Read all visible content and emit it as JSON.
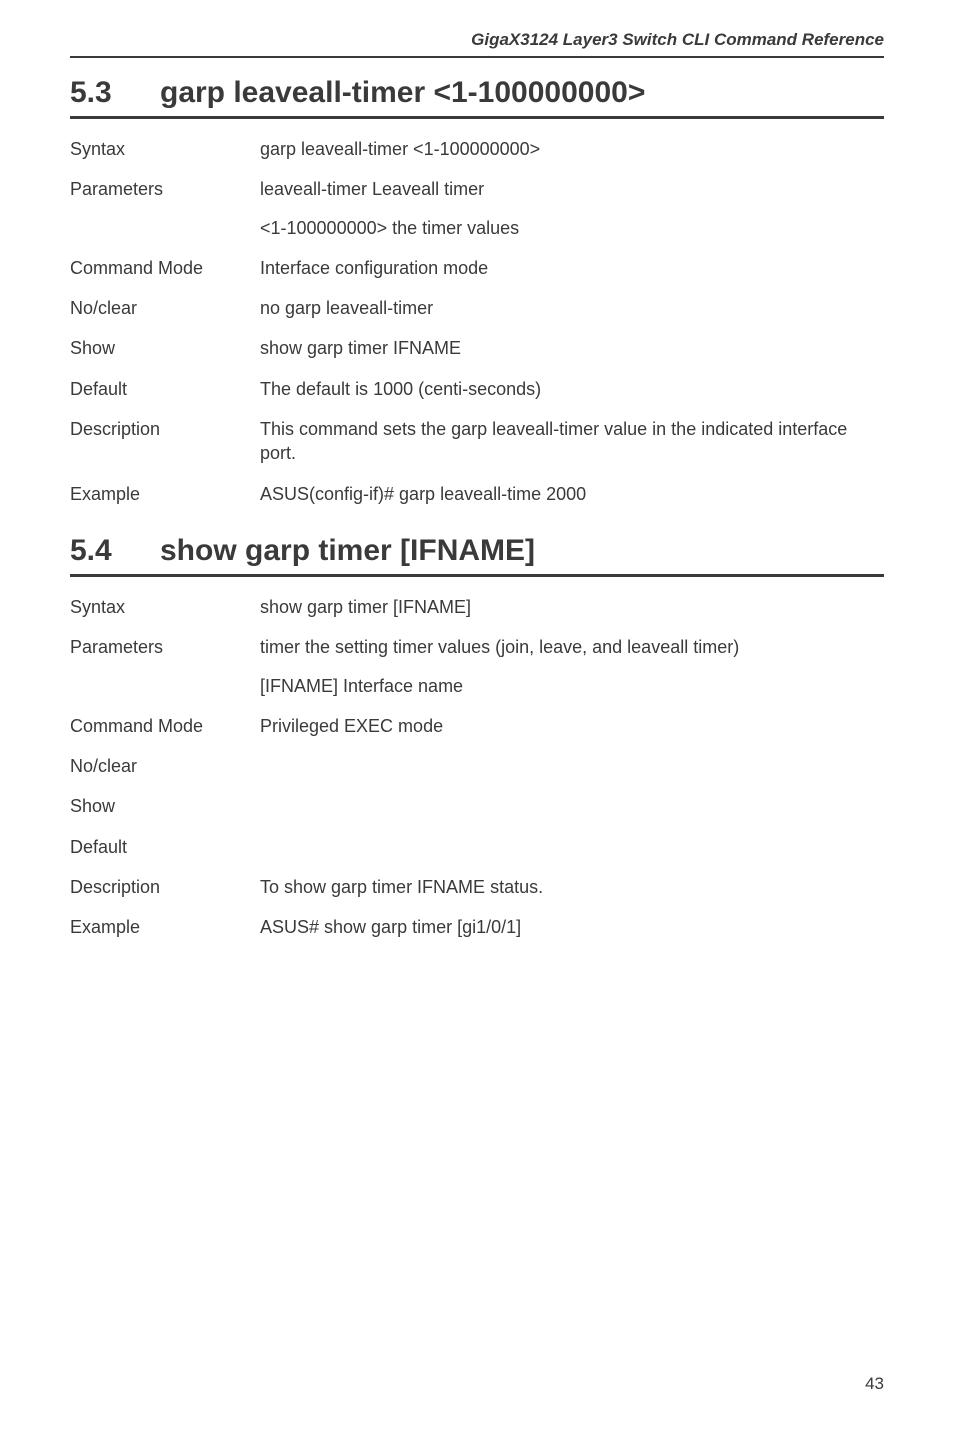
{
  "running_header": "GigaX3124 Layer3 Switch CLI Command Reference",
  "page_number": "43",
  "sections": [
    {
      "number": "5.3",
      "title": "garp leaveall-timer <1-100000000>",
      "rows": [
        {
          "label": "Syntax",
          "value": "garp leaveall-timer <1-100000000>"
        },
        {
          "label": "Parameters",
          "value": "leaveall-timer  Leaveall timer",
          "sub": "<1-100000000>  the timer values"
        },
        {
          "label": "Command Mode",
          "value": "Interface configuration mode"
        },
        {
          "label": "No/clear",
          "value": "no garp leaveall-timer"
        },
        {
          "label": "Show",
          "value": "show garp timer IFNAME"
        },
        {
          "label": "Default",
          "value": "The default is 1000 (centi-seconds)"
        },
        {
          "label": "Description",
          "value": "This command sets the garp leaveall-timer value in the indicated interface port."
        },
        {
          "label": "Example",
          "value": "ASUS(config-if)# garp leaveall-time 2000"
        }
      ]
    },
    {
      "number": "5.4",
      "title": "show garp timer [IFNAME]",
      "rows": [
        {
          "label": "Syntax",
          "value": "show garp timer [IFNAME]"
        },
        {
          "label": "Parameters",
          "value": "timer  the setting timer values (join, leave, and leaveall timer)",
          "sub": "[IFNAME]  Interface name"
        },
        {
          "label": "Command Mode",
          "value": "Privileged EXEC mode"
        },
        {
          "label": "No/clear",
          "value": ""
        },
        {
          "label": "Show",
          "value": ""
        },
        {
          "label": "Default",
          "value": ""
        },
        {
          "label": "Description",
          "value": "To show garp timer IFNAME status."
        },
        {
          "label": "Example",
          "value": "ASUS# show garp timer [gi1/0/1]"
        }
      ]
    }
  ]
}
